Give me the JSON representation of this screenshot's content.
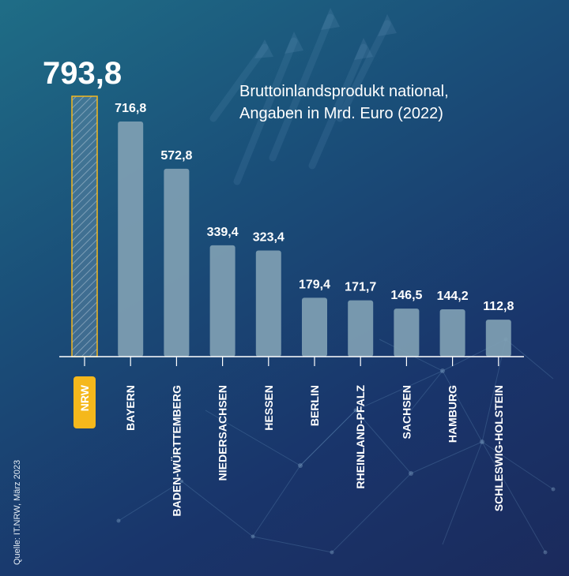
{
  "title_lines": [
    "Bruttoinlandsprodukt national,",
    "Angaben in Mrd. Euro (2022)"
  ],
  "source": "Quelle: IT.NRW, März 2023",
  "colors": {
    "bar": "#7f9fb3",
    "highlight": "#f5b81c",
    "text": "#ffffff",
    "axis": "#ffffff"
  },
  "chart_data": {
    "type": "bar",
    "categories": [
      "NRW",
      "BAYERN",
      "BADEN-WÜRTTEMBERG",
      "NIEDERSACHSEN",
      "HESSEN",
      "BERLIN",
      "RHEINLAND-PFALZ",
      "SACHSEN",
      "HAMBURG",
      "SCHLESWIG-HOLSTEIN"
    ],
    "values": [
      793.8,
      716.8,
      572.8,
      339.4,
      323.4,
      179.4,
      171.7,
      146.5,
      144.2,
      112.8
    ],
    "value_labels": [
      "793,8",
      "716,8",
      "572,8",
      "339,4",
      "323,4",
      "179,4",
      "171,7",
      "146,5",
      "144,2",
      "112,8"
    ],
    "highlight": "NRW",
    "ylim": [
      0,
      793.8
    ],
    "grid": false,
    "unit": "Mrd. Euro"
  }
}
